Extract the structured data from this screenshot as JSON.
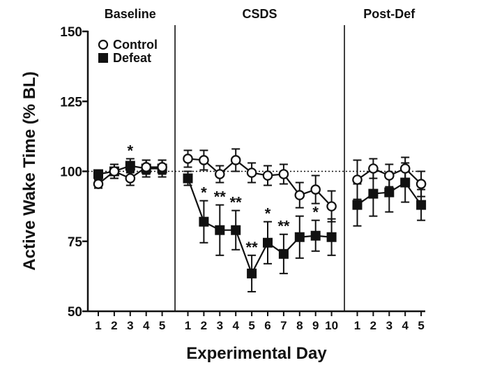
{
  "chart_data": {
    "type": "line",
    "ylabel": "Active Wake Time (% BL)",
    "xlabel": "Experimental Day",
    "ylim": [
      50,
      150
    ],
    "yticks": [
      50,
      75,
      100,
      125,
      150
    ],
    "reference_line": 100,
    "phases": [
      {
        "name": "Baseline",
        "days": [
          "1",
          "2",
          "3",
          "4",
          "5"
        ]
      },
      {
        "name": "CSDS",
        "days": [
          "1",
          "2",
          "3",
          "4",
          "5",
          "6",
          "7",
          "8",
          "9",
          "10"
        ]
      },
      {
        "name": "Post-Def",
        "days": [
          "1",
          "2",
          "3",
          "4",
          "5"
        ]
      }
    ],
    "series": [
      {
        "name": "Control",
        "marker": "open-circle",
        "values": [
          95.5,
          100,
          97.5,
          101.5,
          101.5,
          104.5,
          104,
          99,
          104,
          99.5,
          98.5,
          99,
          91.5,
          93.5,
          87.5,
          97,
          101,
          98.5,
          101,
          95.5
        ],
        "errors": [
          1.5,
          2.5,
          2.5,
          2.5,
          2.5,
          3,
          3.5,
          3,
          4,
          3.5,
          3.5,
          3.5,
          4.5,
          5,
          5.5,
          7,
          3.5,
          4,
          4,
          4.5
        ]
      },
      {
        "name": "Defeat",
        "marker": "filled-square",
        "values": [
          99,
          100,
          102,
          101,
          101,
          97.5,
          82,
          79,
          79,
          63.5,
          74.5,
          70.5,
          76.5,
          77,
          76.5,
          88,
          92,
          92.5,
          96,
          88
        ],
        "errors": [
          1.5,
          2.5,
          2.5,
          3,
          3,
          2.5,
          7.5,
          9,
          7,
          6.5,
          7.5,
          7,
          7.5,
          5.5,
          6.5,
          7.5,
          8,
          7,
          7,
          5.5
        ]
      }
    ],
    "annotations": [
      {
        "index": 2,
        "text": "*"
      },
      {
        "index": 6,
        "text": "*"
      },
      {
        "index": 7,
        "text": "**"
      },
      {
        "index": 8,
        "text": "**"
      },
      {
        "index": 9,
        "text": "**"
      },
      {
        "index": 10,
        "text": "*"
      },
      {
        "index": 11,
        "text": "**"
      },
      {
        "index": 13,
        "text": "*"
      }
    ]
  }
}
